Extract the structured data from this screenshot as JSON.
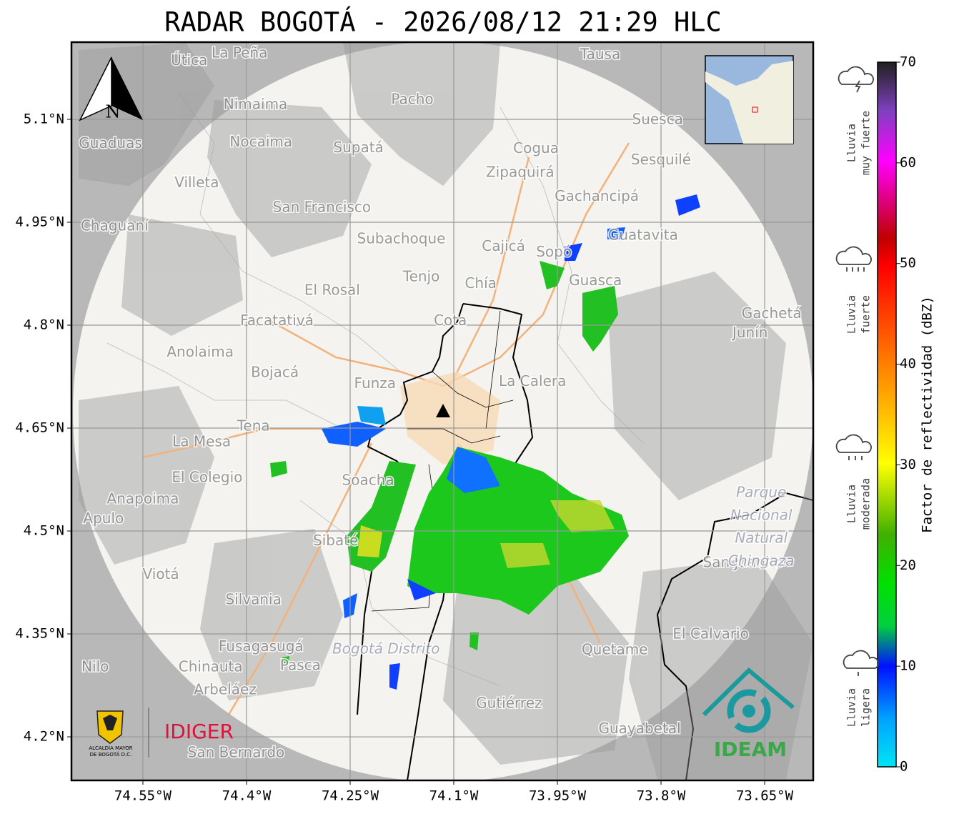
{
  "title": "RADAR BOGOTÁ - 2026/08/12 21:29 HLC",
  "map": {
    "lon_range": [
      -74.6534,
      -73.5797
    ],
    "lat_range": [
      4.1365,
      5.2125
    ],
    "lon_ticks": [
      {
        "value": -74.55,
        "label": "74.55°W"
      },
      {
        "value": -74.4,
        "label": "74.4°W"
      },
      {
        "value": -74.25,
        "label": "74.25°W"
      },
      {
        "value": -74.1,
        "label": "74.1°W"
      },
      {
        "value": -73.95,
        "label": "73.95°W"
      },
      {
        "value": -73.8,
        "label": "73.8°W"
      },
      {
        "value": -73.65,
        "label": "73.65°W"
      }
    ],
    "lat_ticks": [
      {
        "value": 5.1,
        "label": "5.1°N"
      },
      {
        "value": 4.95,
        "label": "4.95°N"
      },
      {
        "value": 4.8,
        "label": "4.8°N"
      },
      {
        "value": 4.65,
        "label": "4.65°N"
      },
      {
        "value": 4.5,
        "label": "4.5°N"
      },
      {
        "value": 4.35,
        "label": "4.35°N"
      },
      {
        "value": 4.2,
        "label": "4.2°N"
      }
    ],
    "north": "N",
    "places": [
      {
        "name": "La Peña",
        "lon": -74.41,
        "lat": 5.196
      },
      {
        "name": "Útica",
        "lon": -74.483,
        "lat": 5.185
      },
      {
        "name": "Tausa",
        "lon": -73.888,
        "lat": 5.194
      },
      {
        "name": "Pacho",
        "lon": -74.16,
        "lat": 5.128
      },
      {
        "name": "Nimaima",
        "lon": -74.387,
        "lat": 5.121
      },
      {
        "name": "Guaduas",
        "lon": -74.597,
        "lat": 5.064
      },
      {
        "name": "Nocaima",
        "lon": -74.379,
        "lat": 5.066
      },
      {
        "name": "Supatá",
        "lon": -74.238,
        "lat": 5.058
      },
      {
        "name": "Suesca",
        "lon": -73.805,
        "lat": 5.099
      },
      {
        "name": "Cogua",
        "lon": -73.981,
        "lat": 5.057
      },
      {
        "name": "Sesquilé",
        "lon": -73.8,
        "lat": 5.04
      },
      {
        "name": "Zipaquirá",
        "lon": -74.004,
        "lat": 5.022
      },
      {
        "name": "Villeta",
        "lon": -74.472,
        "lat": 5.007
      },
      {
        "name": "Gachancipá",
        "lon": -73.893,
        "lat": 4.987
      },
      {
        "name": "San Francisco",
        "lon": -74.291,
        "lat": 4.971
      },
      {
        "name": "Chaguaní",
        "lon": -74.591,
        "lat": 4.944
      },
      {
        "name": "Subachoque",
        "lon": -74.176,
        "lat": 4.925
      },
      {
        "name": "Cajicá",
        "lon": -74.028,
        "lat": 4.914
      },
      {
        "name": "Sopó",
        "lon": -73.955,
        "lat": 4.906
      },
      {
        "name": "Guatavita",
        "lon": -73.826,
        "lat": 4.93
      },
      {
        "name": "Tenjo",
        "lon": -74.147,
        "lat": 4.87
      },
      {
        "name": "Chía",
        "lon": -74.061,
        "lat": 4.86
      },
      {
        "name": "Guasca",
        "lon": -73.895,
        "lat": 4.864
      },
      {
        "name": "El Rosal",
        "lon": -74.276,
        "lat": 4.85
      },
      {
        "name": "Facatativá",
        "lon": -74.356,
        "lat": 4.806
      },
      {
        "name": "Cota",
        "lon": -74.105,
        "lat": 4.806
      },
      {
        "name": "Gachetá",
        "lon": -73.64,
        "lat": 4.816
      },
      {
        "name": "Junín",
        "lon": -73.671,
        "lat": 4.788
      },
      {
        "name": "Anolaima",
        "lon": -74.467,
        "lat": 4.76
      },
      {
        "name": "Bojacá",
        "lon": -74.359,
        "lat": 4.73
      },
      {
        "name": "Funza",
        "lon": -74.214,
        "lat": 4.714
      },
      {
        "name": "La Calera",
        "lon": -73.986,
        "lat": 4.717
      },
      {
        "name": "Tena",
        "lon": -74.39,
        "lat": 4.652
      },
      {
        "name": "La Mesa",
        "lon": -74.465,
        "lat": 4.629
      },
      {
        "name": "El Colegio",
        "lon": -74.457,
        "lat": 4.577
      },
      {
        "name": "Soacha",
        "lon": -74.224,
        "lat": 4.573
      },
      {
        "name": "Anapoima",
        "lon": -74.55,
        "lat": 4.546
      },
      {
        "name": "Apulo",
        "lon": -74.607,
        "lat": 4.517
      },
      {
        "name": "Sibaté",
        "lon": -74.271,
        "lat": 4.485
      },
      {
        "name": "San Juanito",
        "lon": -73.681,
        "lat": 4.453
      },
      {
        "name": "Viotá",
        "lon": -74.524,
        "lat": 4.436
      },
      {
        "name": "Silvania",
        "lon": -74.39,
        "lat": 4.399
      },
      {
        "name": "El Calvario",
        "lon": -73.728,
        "lat": 4.349
      },
      {
        "name": "Fusagasugá",
        "lon": -74.379,
        "lat": 4.331
      },
      {
        "name": "Quetame",
        "lon": -73.867,
        "lat": 4.326
      },
      {
        "name": "Chinauta",
        "lon": -74.452,
        "lat": 4.301
      },
      {
        "name": "Pasca",
        "lon": -74.322,
        "lat": 4.303
      },
      {
        "name": "Nilo",
        "lon": -74.619,
        "lat": 4.301
      },
      {
        "name": "Arbeláez",
        "lon": -74.431,
        "lat": 4.268
      },
      {
        "name": "Gutiérrez",
        "lon": -74.02,
        "lat": 4.248
      },
      {
        "name": "Guayabetal",
        "lon": -73.831,
        "lat": 4.211
      },
      {
        "name": "San Bernardo",
        "lon": -74.415,
        "lat": 4.176
      }
    ],
    "areas": [
      {
        "lines": [
          "Parque",
          "Nacional",
          "Natural",
          "Chingaza"
        ],
        "lon": -73.655,
        "lat": 4.555
      },
      {
        "lines": [
          "Bogotá Distrito"
        ],
        "lon": -74.198,
        "lat": 4.327
      }
    ]
  },
  "colorbar": {
    "label": "Factor de reflectividad (dBZ)",
    "range": [
      0,
      70
    ],
    "ticks": [
      0,
      10,
      20,
      30,
      40,
      50,
      60,
      70
    ]
  },
  "rain_levels": [
    {
      "lines": [
        "Lluvia",
        "muy fuerte"
      ]
    },
    {
      "lines": [
        "Lluvia",
        "fuerte"
      ]
    },
    {
      "lines": [
        "Lluvia",
        "moderada"
      ]
    },
    {
      "lines": [
        "Lluvia",
        "ligera"
      ]
    }
  ],
  "logos": {
    "idiger": "IDIGER",
    "ideam": "IDEAM",
    "alcaldia": [
      "ALCALDÍA MAYOR",
      "DE BOGOTÁ D.C."
    ]
  }
}
